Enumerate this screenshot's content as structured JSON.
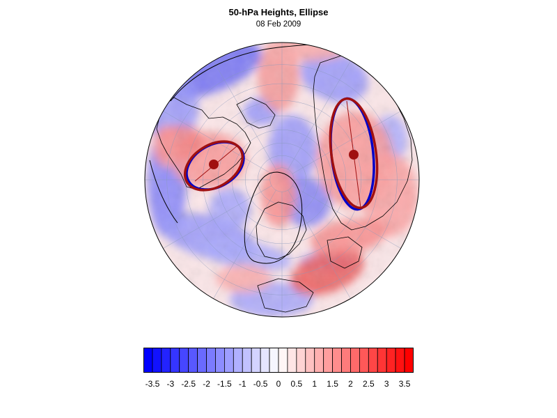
{
  "figure": {
    "title": "50-hPa Heights, Ellipse",
    "date": "08 Feb 2009"
  },
  "colors": {
    "negative_max": "#0000ff",
    "neutral": "#ffffff",
    "positive_max": "#ff0000",
    "ellipse_fit": "#a01010",
    "ellipse_contour": "#0000c8",
    "coast": "#000000",
    "grid": "#8899bb"
  },
  "colorbar": {
    "levels": [
      -3.75,
      -3.5,
      -3.25,
      -3,
      -2.75,
      -2.5,
      -2.25,
      -2,
      -1.75,
      -1.5,
      -1.25,
      -1,
      -0.75,
      -0.5,
      -0.25,
      0,
      0.25,
      0.5,
      0.75,
      1,
      1.25,
      1.5,
      1.75,
      2,
      2.25,
      2.5,
      2.75,
      3,
      3.25,
      3.5,
      3.75
    ],
    "tick_labels": [
      "-3.5",
      "-3",
      "-2.5",
      "-2",
      "-1.5",
      "-1",
      "-0.5",
      "0",
      "0.5",
      "1",
      "1.5",
      "2",
      "2.5",
      "3",
      "3.5"
    ]
  },
  "map": {
    "projection": "north-polar-stereographic",
    "features": [
      "coastlines",
      "lat-lon-grid",
      "anomaly-shading",
      "vortex-ellipses"
    ]
  }
}
